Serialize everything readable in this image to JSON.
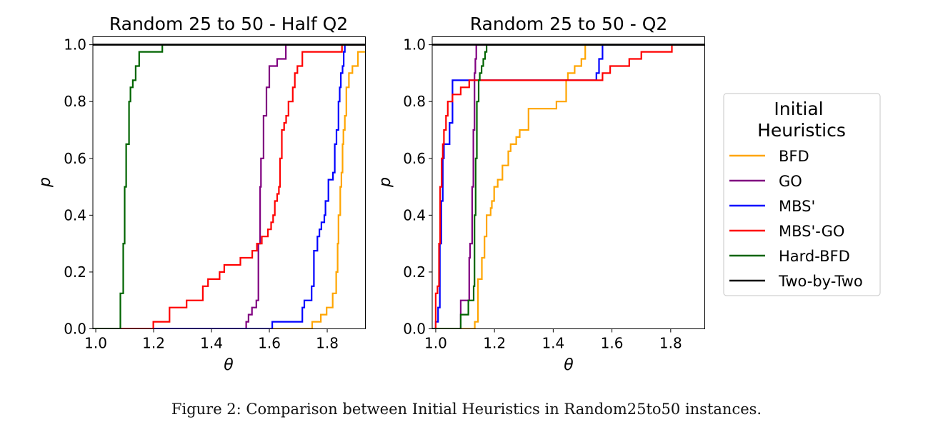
{
  "caption": "Figure 2: Comparison between Initial Heuristics in Random25to50 instances.",
  "legend": {
    "title_line1": "Initial",
    "title_line2": "Heuristics",
    "placement": "right, outside",
    "entries": [
      {
        "label": "BFD",
        "color": "#ffa500"
      },
      {
        "label": "GO",
        "color": "#800080"
      },
      {
        "label": "MBS'",
        "color": "#0000ff"
      },
      {
        "label": "MBS'-GO",
        "color": "#ff0000"
      },
      {
        "label": "Hard-BFD",
        "color": "#006400"
      },
      {
        "label": "Two-by-Two",
        "color": "#000000"
      }
    ]
  },
  "chart_data": [
    {
      "type": "line",
      "step": "post",
      "title": "Random 25 to 50 - Half Q2",
      "xlabel": "θ",
      "ylabel": "p",
      "xlim": [
        0.99,
        1.932
      ],
      "ylim": [
        0,
        1.028
      ],
      "xticks": [
        "1.0",
        "1.2",
        "1.4",
        "1.6",
        "1.8"
      ],
      "yticks": [
        "0.0",
        "0.2",
        "0.4",
        "0.6",
        "0.8",
        "1.0"
      ],
      "grid": false,
      "series": [
        {
          "name": "BFD",
          "color": "#ffa500",
          "points": [
            [
              1.748,
              0.025
            ],
            [
              1.778,
              0.05
            ],
            [
              1.798,
              0.075
            ],
            [
              1.819,
              0.125
            ],
            [
              1.831,
              0.2
            ],
            [
              1.836,
              0.3
            ],
            [
              1.839,
              0.4
            ],
            [
              1.845,
              0.5
            ],
            [
              1.849,
              0.55
            ],
            [
              1.853,
              0.65
            ],
            [
              1.856,
              0.7
            ],
            [
              1.861,
              0.75
            ],
            [
              1.866,
              0.85
            ],
            [
              1.875,
              0.9
            ],
            [
              1.887,
              0.925
            ],
            [
              1.906,
              0.975
            ]
          ]
        },
        {
          "name": "GO",
          "color": "#800080",
          "points": [
            [
              1.52,
              0.025
            ],
            [
              1.528,
              0.05
            ],
            [
              1.54,
              0.075
            ],
            [
              1.555,
              0.1
            ],
            [
              1.562,
              0.3
            ],
            [
              1.568,
              0.5
            ],
            [
              1.571,
              0.6
            ],
            [
              1.58,
              0.75
            ],
            [
              1.59,
              0.85
            ],
            [
              1.6,
              0.925
            ],
            [
              1.627,
              0.95
            ],
            [
              1.657,
              1.0
            ]
          ]
        },
        {
          "name": "MBS'",
          "color": "#0000ff",
          "points": [
            [
              1.61,
              0.025
            ],
            [
              1.714,
              0.075
            ],
            [
              1.721,
              0.1
            ],
            [
              1.746,
              0.15
            ],
            [
              1.754,
              0.275
            ],
            [
              1.766,
              0.325
            ],
            [
              1.773,
              0.35
            ],
            [
              1.78,
              0.375
            ],
            [
              1.79,
              0.4
            ],
            [
              1.794,
              0.45
            ],
            [
              1.804,
              0.525
            ],
            [
              1.82,
              0.55
            ],
            [
              1.826,
              0.65
            ],
            [
              1.832,
              0.7
            ],
            [
              1.839,
              0.8
            ],
            [
              1.843,
              0.85
            ],
            [
              1.847,
              0.9
            ],
            [
              1.853,
              0.925
            ],
            [
              1.857,
              0.975
            ],
            [
              1.861,
              1.0
            ]
          ]
        },
        {
          "name": "MBS'-GO",
          "color": "#ff0000",
          "points": [
            [
              1.199,
              0.025
            ],
            [
              1.255,
              0.075
            ],
            [
              1.314,
              0.1
            ],
            [
              1.37,
              0.15
            ],
            [
              1.388,
              0.175
            ],
            [
              1.428,
              0.2
            ],
            [
              1.444,
              0.225
            ],
            [
              1.5,
              0.25
            ],
            [
              1.541,
              0.275
            ],
            [
              1.557,
              0.3
            ],
            [
              1.574,
              0.325
            ],
            [
              1.595,
              0.35
            ],
            [
              1.606,
              0.375
            ],
            [
              1.613,
              0.4
            ],
            [
              1.619,
              0.45
            ],
            [
              1.627,
              0.475
            ],
            [
              1.633,
              0.5
            ],
            [
              1.637,
              0.6
            ],
            [
              1.643,
              0.7
            ],
            [
              1.651,
              0.725
            ],
            [
              1.658,
              0.75
            ],
            [
              1.666,
              0.8
            ],
            [
              1.681,
              0.85
            ],
            [
              1.688,
              0.9
            ],
            [
              1.697,
              0.925
            ],
            [
              1.714,
              0.975
            ],
            [
              1.851,
              1.0
            ]
          ]
        },
        {
          "name": "Hard-BFD",
          "color": "#006400",
          "points": [
            [
              1.085,
              0.125
            ],
            [
              1.095,
              0.3
            ],
            [
              1.1,
              0.5
            ],
            [
              1.105,
              0.65
            ],
            [
              1.115,
              0.8
            ],
            [
              1.12,
              0.85
            ],
            [
              1.128,
              0.875
            ],
            [
              1.138,
              0.925
            ],
            [
              1.15,
              0.975
            ],
            [
              1.23,
              1.0
            ]
          ]
        },
        {
          "name": "Two-by-Two",
          "color": "#000000",
          "points": [
            [
              0.99,
              1.0
            ]
          ]
        }
      ]
    },
    {
      "type": "line",
      "step": "post",
      "title": "Random 25 to 50 - Q2",
      "xlabel": "θ",
      "ylabel": "p",
      "xlim": [
        0.988,
        1.916
      ],
      "ylim": [
        0,
        1.028
      ],
      "xticks": [
        "1.0",
        "1.2",
        "1.4",
        "1.6",
        "1.8"
      ],
      "yticks": [
        "0.0",
        "0.2",
        "0.4",
        "0.6",
        "0.8",
        "1.0"
      ],
      "grid": false,
      "series": [
        {
          "name": "BFD",
          "color": "#ffa500",
          "points": [
            [
              1.133,
              0.025
            ],
            [
              1.144,
              0.175
            ],
            [
              1.157,
              0.25
            ],
            [
              1.166,
              0.325
            ],
            [
              1.173,
              0.4
            ],
            [
              1.187,
              0.425
            ],
            [
              1.191,
              0.45
            ],
            [
              1.199,
              0.5
            ],
            [
              1.211,
              0.525
            ],
            [
              1.227,
              0.575
            ],
            [
              1.247,
              0.625
            ],
            [
              1.255,
              0.65
            ],
            [
              1.274,
              0.675
            ],
            [
              1.286,
              0.7
            ],
            [
              1.316,
              0.775
            ],
            [
              1.411,
              0.8
            ],
            [
              1.444,
              0.875
            ],
            [
              1.45,
              0.9
            ],
            [
              1.473,
              0.925
            ],
            [
              1.496,
              0.95
            ],
            [
              1.509,
              1.0
            ]
          ]
        },
        {
          "name": "GO",
          "color": "#800080",
          "points": [
            [
              1.085,
              0.1
            ],
            [
              1.114,
              0.25
            ],
            [
              1.117,
              0.3
            ],
            [
              1.124,
              0.5
            ],
            [
              1.128,
              0.7
            ],
            [
              1.132,
              0.9
            ],
            [
              1.135,
              0.95
            ],
            [
              1.138,
              1.0
            ]
          ]
        },
        {
          "name": "MBS'",
          "color": "#0000ff",
          "points": [
            [
              1.0,
              0.025
            ],
            [
              1.008,
              0.075
            ],
            [
              1.014,
              0.3
            ],
            [
              1.019,
              0.45
            ],
            [
              1.024,
              0.6
            ],
            [
              1.028,
              0.65
            ],
            [
              1.047,
              0.725
            ],
            [
              1.057,
              0.875
            ],
            [
              1.547,
              0.9
            ],
            [
              1.556,
              0.95
            ],
            [
              1.568,
              1.0
            ]
          ]
        },
        {
          "name": "MBS'-GO",
          "color": "#ff0000",
          "points": [
            [
              1.0,
              0.125
            ],
            [
              1.006,
              0.15
            ],
            [
              1.011,
              0.3
            ],
            [
              1.015,
              0.5
            ],
            [
              1.02,
              0.6
            ],
            [
              1.024,
              0.65
            ],
            [
              1.028,
              0.7
            ],
            [
              1.035,
              0.75
            ],
            [
              1.041,
              0.8
            ],
            [
              1.057,
              0.825
            ],
            [
              1.085,
              0.85
            ],
            [
              1.114,
              0.875
            ],
            [
              1.568,
              0.9
            ],
            [
              1.594,
              0.925
            ],
            [
              1.659,
              0.95
            ],
            [
              1.7,
              0.975
            ],
            [
              1.804,
              1.0
            ]
          ]
        },
        {
          "name": "Hard-BFD",
          "color": "#006400",
          "points": [
            [
              1.085,
              0.05
            ],
            [
              1.111,
              0.1
            ],
            [
              1.129,
              0.15
            ],
            [
              1.132,
              0.4
            ],
            [
              1.136,
              0.6
            ],
            [
              1.14,
              0.8
            ],
            [
              1.146,
              0.875
            ],
            [
              1.15,
              0.9
            ],
            [
              1.156,
              0.925
            ],
            [
              1.162,
              0.95
            ],
            [
              1.168,
              0.975
            ],
            [
              1.173,
              1.0
            ]
          ]
        },
        {
          "name": "Two-by-Two",
          "color": "#000000",
          "points": [
            [
              0.988,
              1.0
            ]
          ]
        }
      ]
    }
  ]
}
